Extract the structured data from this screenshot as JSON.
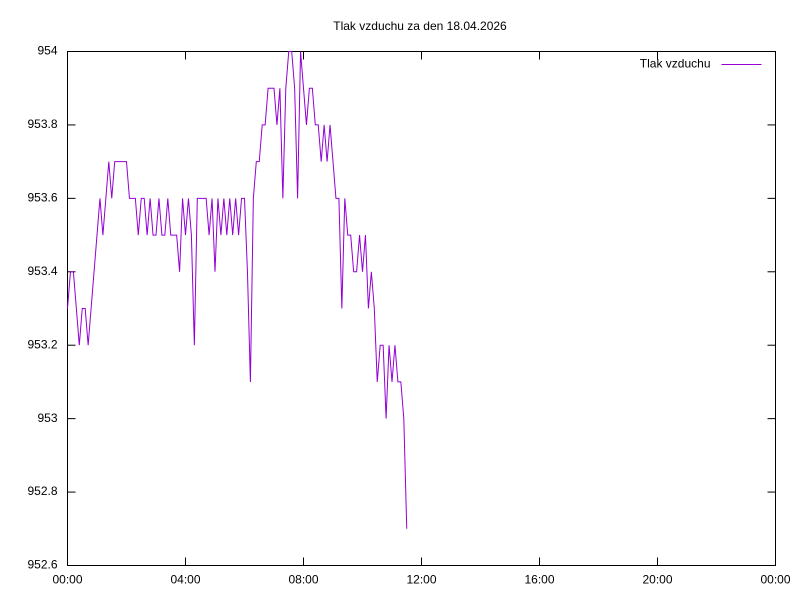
{
  "chart_data": {
    "type": "line",
    "title": "Tlak vzduchu za den 18.04.2026",
    "x": [
      0,
      0.1,
      0.2,
      0.3,
      0.4,
      0.5,
      0.6,
      0.7,
      0.8,
      0.9,
      1.0,
      1.1,
      1.2,
      1.3,
      1.4,
      1.5,
      1.6,
      1.7,
      1.8,
      1.9,
      2.0,
      2.1,
      2.2,
      2.3,
      2.4,
      2.5,
      2.6,
      2.7,
      2.8,
      2.9,
      3.0,
      3.1,
      3.2,
      3.3,
      3.4,
      3.5,
      3.6,
      3.7,
      3.8,
      3.9,
      4.0,
      4.1,
      4.2,
      4.3,
      4.4,
      4.5,
      4.6,
      4.7,
      4.8,
      4.9,
      5.0,
      5.1,
      5.2,
      5.3,
      5.4,
      5.5,
      5.6,
      5.7,
      5.8,
      5.9,
      6.0,
      6.1,
      6.2,
      6.3,
      6.4,
      6.5,
      6.6,
      6.7,
      6.8,
      6.9,
      7.0,
      7.1,
      7.2,
      7.3,
      7.4,
      7.5,
      7.6,
      7.7,
      7.8,
      7.9,
      8.0,
      8.1,
      8.2,
      8.3,
      8.4,
      8.5,
      8.6,
      8.7,
      8.8,
      8.9,
      9.0,
      9.1,
      9.2,
      9.3,
      9.4,
      9.5,
      9.6,
      9.7,
      9.8,
      9.9,
      10.0,
      10.1,
      10.2,
      10.3,
      10.4,
      10.5,
      10.6,
      10.7,
      10.8,
      10.9,
      11.0,
      11.1,
      11.2,
      11.3,
      11.4,
      11.5
    ],
    "series": [
      {
        "name": "Tlak vzduchu",
        "color": "#9400d3",
        "values": [
          953.3,
          953.4,
          953.4,
          953.3,
          953.2,
          953.3,
          953.3,
          953.2,
          953.3,
          953.4,
          953.5,
          953.6,
          953.5,
          953.6,
          953.7,
          953.6,
          953.7,
          953.7,
          953.7,
          953.7,
          953.7,
          953.6,
          953.6,
          953.6,
          953.5,
          953.6,
          953.6,
          953.5,
          953.6,
          953.5,
          953.5,
          953.6,
          953.5,
          953.5,
          953.6,
          953.5,
          953.5,
          953.5,
          953.4,
          953.6,
          953.5,
          953.6,
          953.5,
          953.2,
          953.6,
          953.6,
          953.6,
          953.6,
          953.5,
          953.6,
          953.4,
          953.6,
          953.5,
          953.6,
          953.5,
          953.6,
          953.5,
          953.6,
          953.5,
          953.6,
          953.6,
          953.4,
          953.1,
          953.6,
          953.7,
          953.7,
          953.8,
          953.8,
          953.9,
          953.9,
          953.9,
          953.8,
          953.9,
          953.6,
          953.9,
          954,
          954,
          953.9,
          953.6,
          954,
          953.9,
          953.8,
          953.9,
          953.9,
          953.8,
          953.8,
          953.7,
          953.8,
          953.7,
          953.8,
          953.7,
          953.6,
          953.6,
          953.3,
          953.6,
          953.5,
          953.5,
          953.4,
          953.4,
          953.5,
          953.4,
          953.5,
          953.3,
          953.4,
          953.3,
          953.1,
          953.2,
          953.2,
          953.0,
          953.2,
          953.1,
          953.2,
          953.1,
          953.1,
          953.0,
          952.7
        ]
      }
    ],
    "xlim": [
      0,
      24
    ],
    "xticks": [
      {
        "value": 0,
        "label": "00:00"
      },
      {
        "value": 4,
        "label": "04:00"
      },
      {
        "value": 8,
        "label": "08:00"
      },
      {
        "value": 12,
        "label": "12:00"
      },
      {
        "value": 16,
        "label": "16:00"
      },
      {
        "value": 20,
        "label": "20:00"
      },
      {
        "value": 24,
        "label": "00:00"
      }
    ],
    "ylim": [
      952.6,
      954
    ],
    "yticks": [
      952.6,
      952.8,
      953,
      953.2,
      953.4,
      953.6,
      953.8,
      954
    ],
    "grid": false,
    "legend": "top-right"
  }
}
